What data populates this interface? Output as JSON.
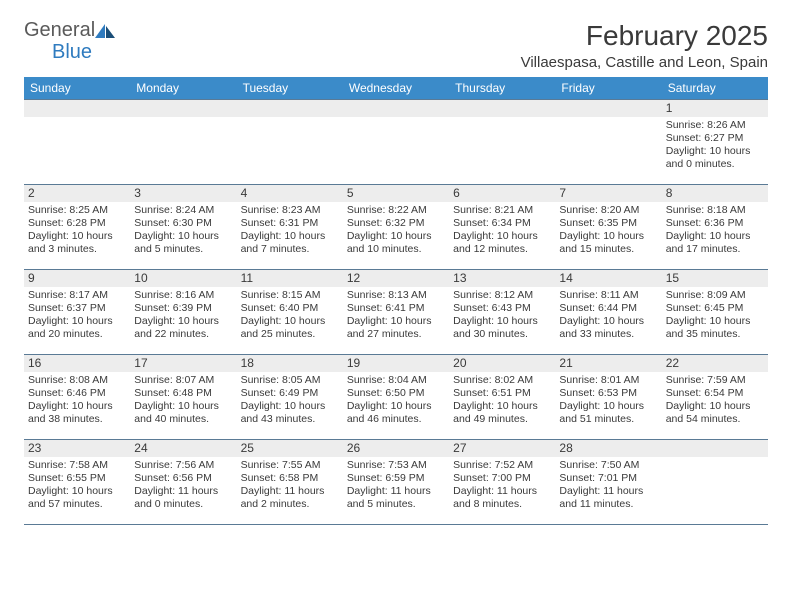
{
  "brand": {
    "general": "General",
    "blue": "Blue"
  },
  "title": {
    "month": "February 2025",
    "location": "Villaespasa, Castille and Leon, Spain"
  },
  "colors": {
    "header_bg": "#3b8bc9",
    "header_text": "#ffffff",
    "daynum_bg": "#ededed",
    "rule": "#5a7a95",
    "text": "#3a3a3a",
    "brand_gray": "#5a5a5a",
    "brand_blue": "#2f7bbf",
    "logo_dark": "#1a4e78"
  },
  "weekdays": [
    "Sunday",
    "Monday",
    "Tuesday",
    "Wednesday",
    "Thursday",
    "Friday",
    "Saturday"
  ],
  "weeks": [
    [
      {
        "n": "",
        "sr": "",
        "ss": "",
        "dl": ""
      },
      {
        "n": "",
        "sr": "",
        "ss": "",
        "dl": ""
      },
      {
        "n": "",
        "sr": "",
        "ss": "",
        "dl": ""
      },
      {
        "n": "",
        "sr": "",
        "ss": "",
        "dl": ""
      },
      {
        "n": "",
        "sr": "",
        "ss": "",
        "dl": ""
      },
      {
        "n": "",
        "sr": "",
        "ss": "",
        "dl": ""
      },
      {
        "n": "1",
        "sr": "Sunrise: 8:26 AM",
        "ss": "Sunset: 6:27 PM",
        "dl": "Daylight: 10 hours and 0 minutes."
      }
    ],
    [
      {
        "n": "2",
        "sr": "Sunrise: 8:25 AM",
        "ss": "Sunset: 6:28 PM",
        "dl": "Daylight: 10 hours and 3 minutes."
      },
      {
        "n": "3",
        "sr": "Sunrise: 8:24 AM",
        "ss": "Sunset: 6:30 PM",
        "dl": "Daylight: 10 hours and 5 minutes."
      },
      {
        "n": "4",
        "sr": "Sunrise: 8:23 AM",
        "ss": "Sunset: 6:31 PM",
        "dl": "Daylight: 10 hours and 7 minutes."
      },
      {
        "n": "5",
        "sr": "Sunrise: 8:22 AM",
        "ss": "Sunset: 6:32 PM",
        "dl": "Daylight: 10 hours and 10 minutes."
      },
      {
        "n": "6",
        "sr": "Sunrise: 8:21 AM",
        "ss": "Sunset: 6:34 PM",
        "dl": "Daylight: 10 hours and 12 minutes."
      },
      {
        "n": "7",
        "sr": "Sunrise: 8:20 AM",
        "ss": "Sunset: 6:35 PM",
        "dl": "Daylight: 10 hours and 15 minutes."
      },
      {
        "n": "8",
        "sr": "Sunrise: 8:18 AM",
        "ss": "Sunset: 6:36 PM",
        "dl": "Daylight: 10 hours and 17 minutes."
      }
    ],
    [
      {
        "n": "9",
        "sr": "Sunrise: 8:17 AM",
        "ss": "Sunset: 6:37 PM",
        "dl": "Daylight: 10 hours and 20 minutes."
      },
      {
        "n": "10",
        "sr": "Sunrise: 8:16 AM",
        "ss": "Sunset: 6:39 PM",
        "dl": "Daylight: 10 hours and 22 minutes."
      },
      {
        "n": "11",
        "sr": "Sunrise: 8:15 AM",
        "ss": "Sunset: 6:40 PM",
        "dl": "Daylight: 10 hours and 25 minutes."
      },
      {
        "n": "12",
        "sr": "Sunrise: 8:13 AM",
        "ss": "Sunset: 6:41 PM",
        "dl": "Daylight: 10 hours and 27 minutes."
      },
      {
        "n": "13",
        "sr": "Sunrise: 8:12 AM",
        "ss": "Sunset: 6:43 PM",
        "dl": "Daylight: 10 hours and 30 minutes."
      },
      {
        "n": "14",
        "sr": "Sunrise: 8:11 AM",
        "ss": "Sunset: 6:44 PM",
        "dl": "Daylight: 10 hours and 33 minutes."
      },
      {
        "n": "15",
        "sr": "Sunrise: 8:09 AM",
        "ss": "Sunset: 6:45 PM",
        "dl": "Daylight: 10 hours and 35 minutes."
      }
    ],
    [
      {
        "n": "16",
        "sr": "Sunrise: 8:08 AM",
        "ss": "Sunset: 6:46 PM",
        "dl": "Daylight: 10 hours and 38 minutes."
      },
      {
        "n": "17",
        "sr": "Sunrise: 8:07 AM",
        "ss": "Sunset: 6:48 PM",
        "dl": "Daylight: 10 hours and 40 minutes."
      },
      {
        "n": "18",
        "sr": "Sunrise: 8:05 AM",
        "ss": "Sunset: 6:49 PM",
        "dl": "Daylight: 10 hours and 43 minutes."
      },
      {
        "n": "19",
        "sr": "Sunrise: 8:04 AM",
        "ss": "Sunset: 6:50 PM",
        "dl": "Daylight: 10 hours and 46 minutes."
      },
      {
        "n": "20",
        "sr": "Sunrise: 8:02 AM",
        "ss": "Sunset: 6:51 PM",
        "dl": "Daylight: 10 hours and 49 minutes."
      },
      {
        "n": "21",
        "sr": "Sunrise: 8:01 AM",
        "ss": "Sunset: 6:53 PM",
        "dl": "Daylight: 10 hours and 51 minutes."
      },
      {
        "n": "22",
        "sr": "Sunrise: 7:59 AM",
        "ss": "Sunset: 6:54 PM",
        "dl": "Daylight: 10 hours and 54 minutes."
      }
    ],
    [
      {
        "n": "23",
        "sr": "Sunrise: 7:58 AM",
        "ss": "Sunset: 6:55 PM",
        "dl": "Daylight: 10 hours and 57 minutes."
      },
      {
        "n": "24",
        "sr": "Sunrise: 7:56 AM",
        "ss": "Sunset: 6:56 PM",
        "dl": "Daylight: 11 hours and 0 minutes."
      },
      {
        "n": "25",
        "sr": "Sunrise: 7:55 AM",
        "ss": "Sunset: 6:58 PM",
        "dl": "Daylight: 11 hours and 2 minutes."
      },
      {
        "n": "26",
        "sr": "Sunrise: 7:53 AM",
        "ss": "Sunset: 6:59 PM",
        "dl": "Daylight: 11 hours and 5 minutes."
      },
      {
        "n": "27",
        "sr": "Sunrise: 7:52 AM",
        "ss": "Sunset: 7:00 PM",
        "dl": "Daylight: 11 hours and 8 minutes."
      },
      {
        "n": "28",
        "sr": "Sunrise: 7:50 AM",
        "ss": "Sunset: 7:01 PM",
        "dl": "Daylight: 11 hours and 11 minutes."
      },
      {
        "n": "",
        "sr": "",
        "ss": "",
        "dl": ""
      }
    ]
  ]
}
